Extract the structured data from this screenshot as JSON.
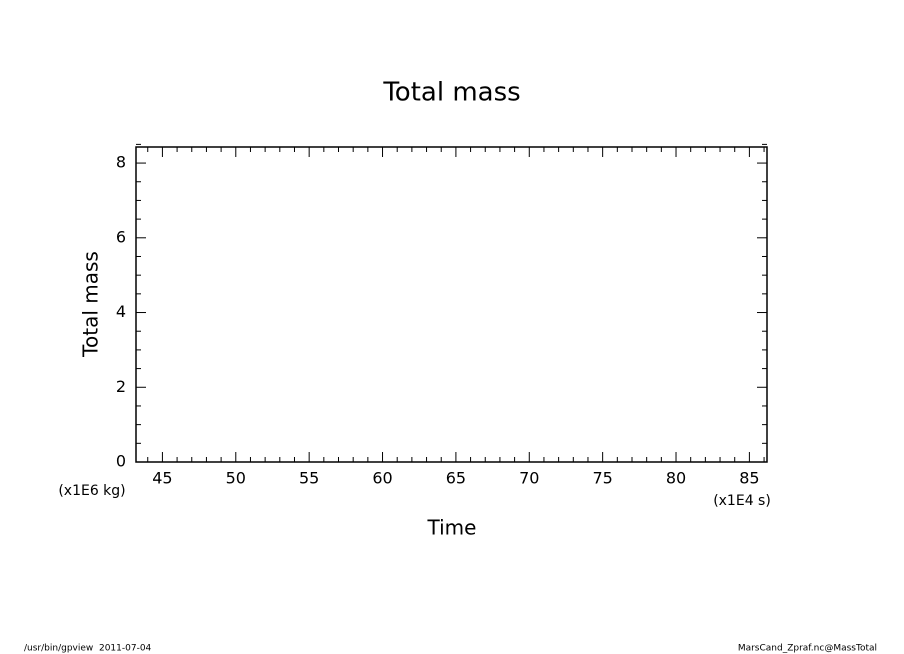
{
  "chart_data": {
    "type": "line",
    "title": "Total mass",
    "xlabel": "Time",
    "ylabel": "Total mass",
    "xunit": "(x1E4 s)",
    "yunit": "(x1E6 kg)",
    "series": [],
    "xlim": [
      43.2,
      86.2
    ],
    "ylim": [
      0,
      8.43
    ],
    "xticks": [
      45,
      50,
      55,
      60,
      65,
      70,
      75,
      80,
      85
    ],
    "yticks": [
      0,
      2,
      4,
      6,
      8
    ],
    "xminorticks": [
      44,
      46,
      47,
      48,
      49,
      51,
      52,
      53,
      54,
      56,
      57,
      58,
      59,
      61,
      62,
      63,
      64,
      66,
      67,
      68,
      69,
      71,
      72,
      73,
      74,
      76,
      77,
      78,
      79,
      81,
      82,
      83,
      84,
      86
    ],
    "yminorticks": [
      0.5,
      1,
      1.5,
      2.5,
      3,
      3.5,
      4.5,
      5,
      5.5,
      6.5,
      7,
      7.5,
      8.5
    ],
    "footer_left": "/usr/bin/gpview  2011-07-04",
    "footer_right": "MarsCand_Zpraf.nc@MassTotal"
  }
}
